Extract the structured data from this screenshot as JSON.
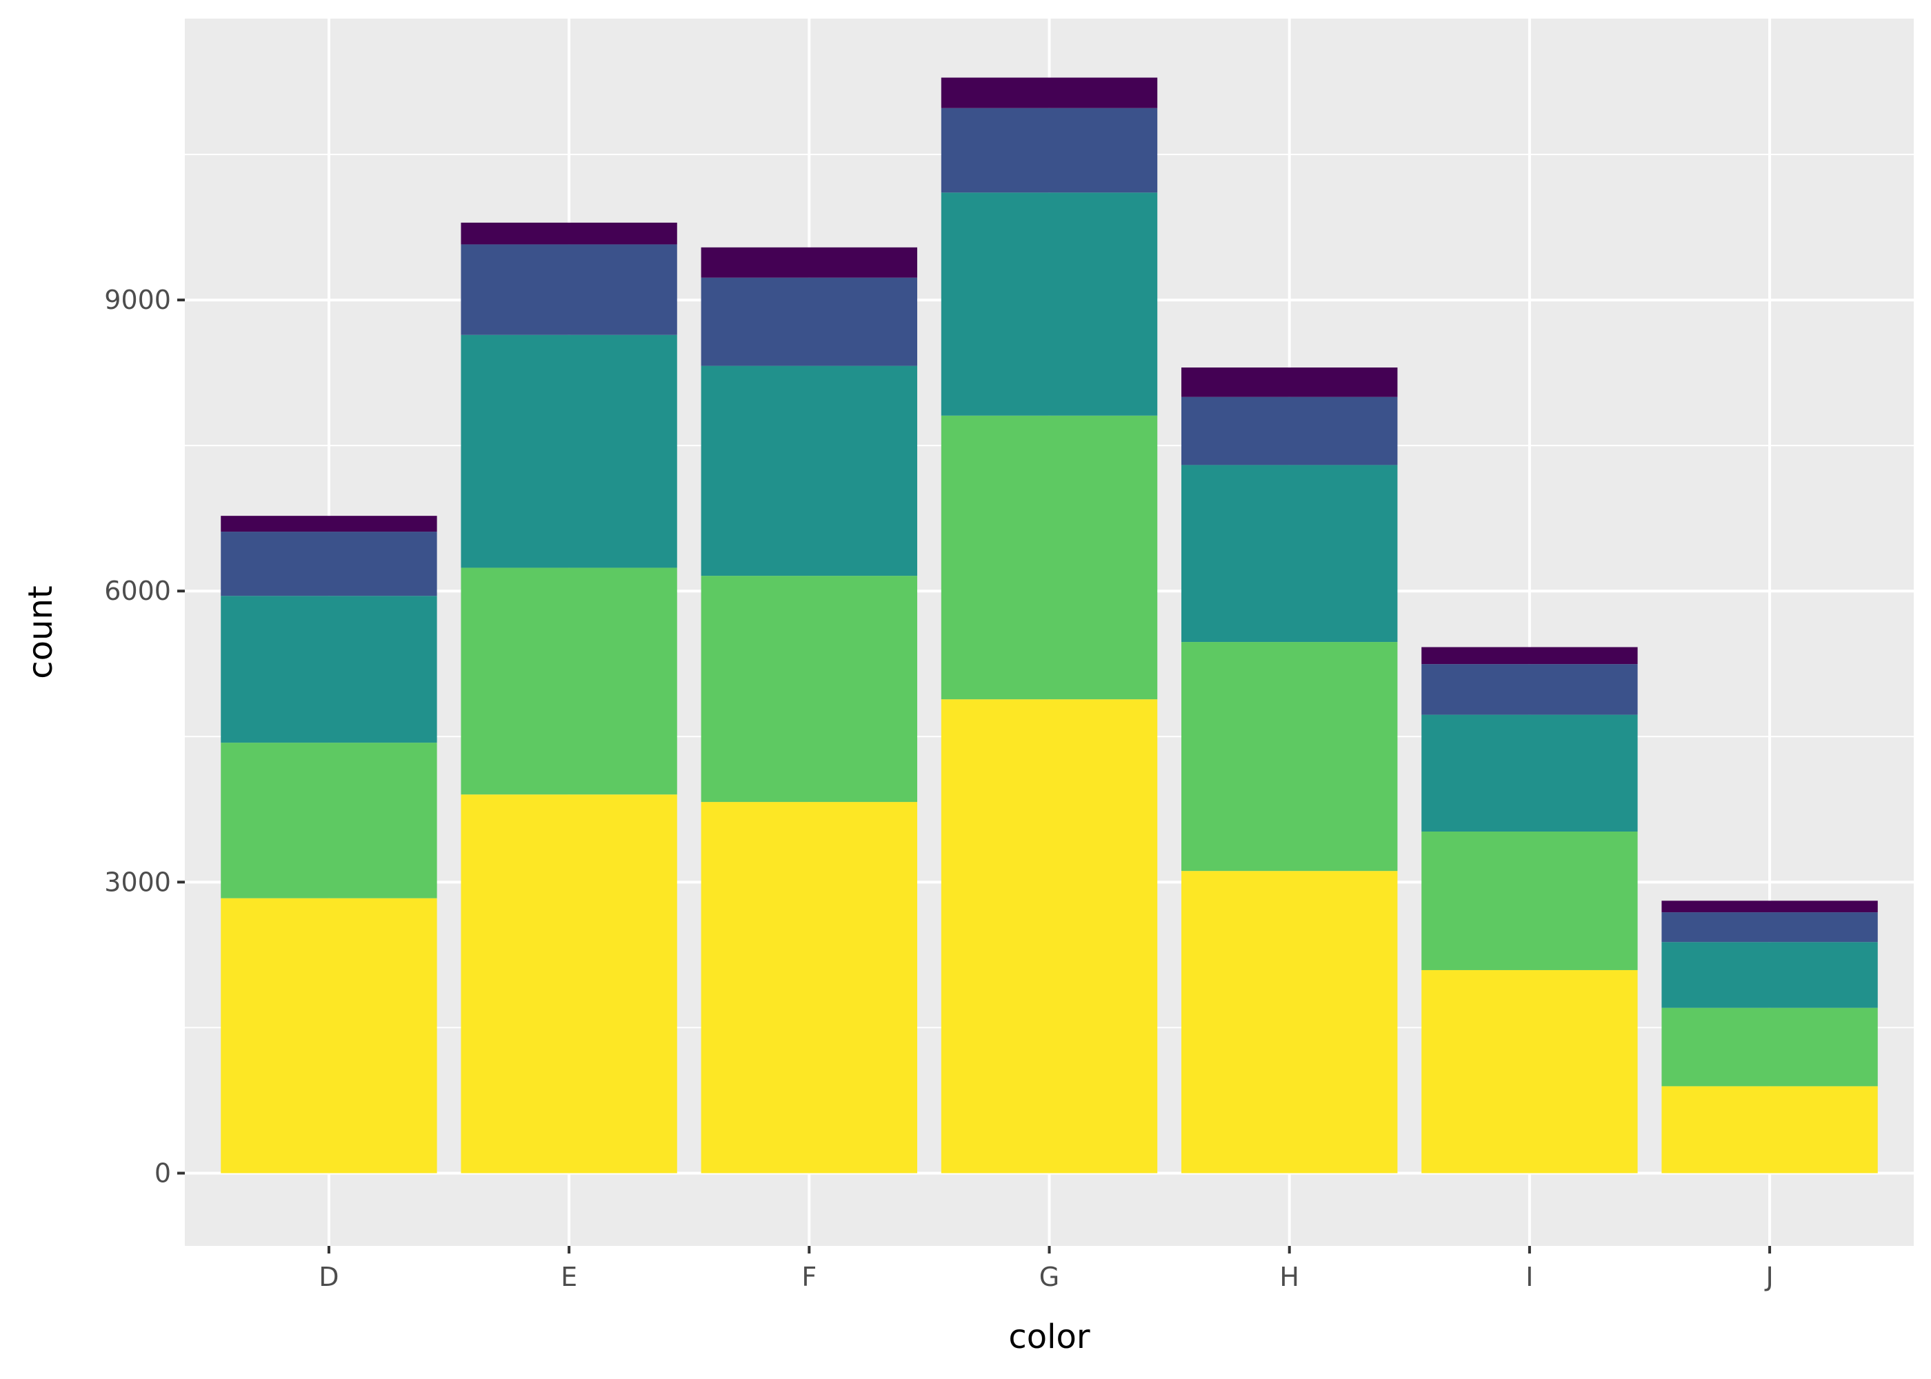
{
  "chart_data": {
    "type": "bar",
    "stacked": true,
    "title": "",
    "xlabel": "color",
    "ylabel": "count",
    "categories": [
      "D",
      "E",
      "F",
      "G",
      "H",
      "I",
      "J"
    ],
    "ylim": [
      -750,
      11900
    ],
    "yticks": [
      0,
      3000,
      6000,
      9000
    ],
    "yticks_minor": [
      1500,
      4500,
      7500,
      10500
    ],
    "grid": true,
    "legend": "none",
    "colors": {
      "panel_background": "#ebebeb",
      "grid": "#ffffff",
      "tick_text": "#4d4d4d",
      "axis_title": "#000000"
    },
    "series": [
      {
        "values": [
          2834,
          3903,
          3826,
          4884,
          3115,
          2093,
          896
        ],
        "color": "#fde725"
      },
      {
        "values": [
          1603,
          2337,
          2331,
          2924,
          2360,
          1428,
          808
        ],
        "color": "#5ec962"
      },
      {
        "values": [
          1513,
          2400,
          2164,
          2299,
          1824,
          1204,
          678
        ],
        "color": "#21918c"
      },
      {
        "values": [
          662,
          933,
          909,
          871,
          702,
          522,
          307
        ],
        "color": "#3b528b"
      },
      {
        "values": [
          163,
          224,
          312,
          314,
          303,
          175,
          119
        ],
        "color": "#440154"
      }
    ]
  }
}
